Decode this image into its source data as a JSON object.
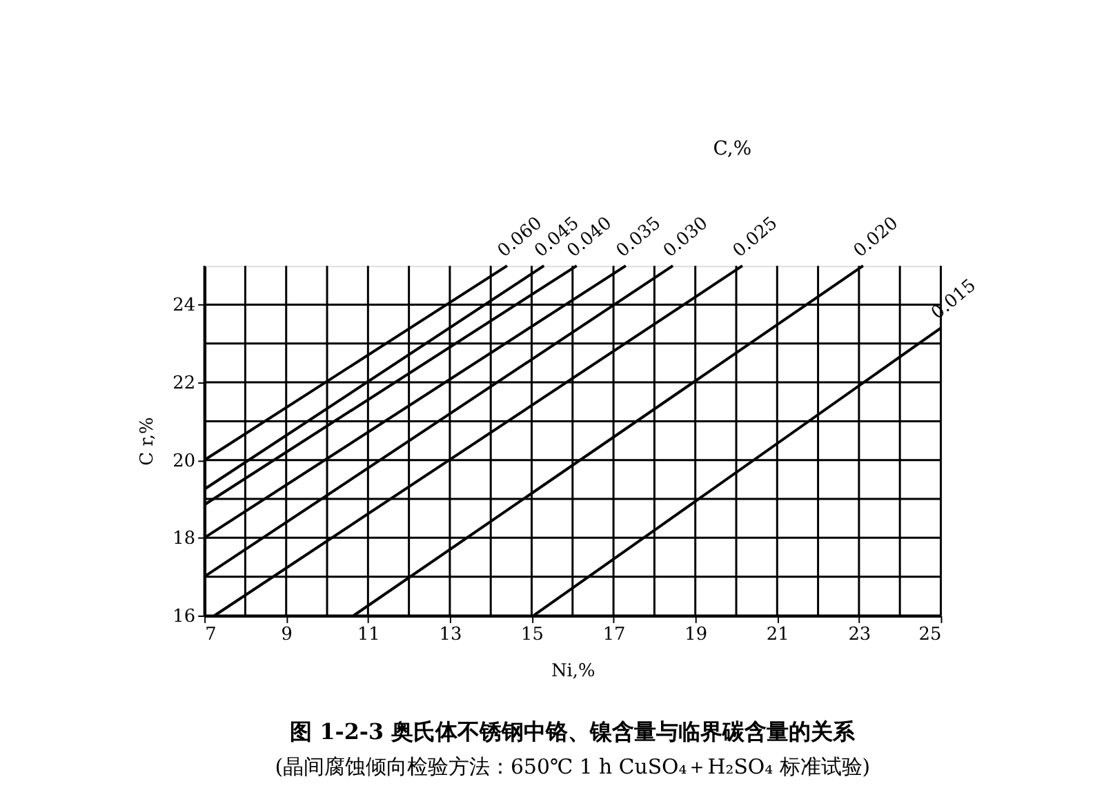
{
  "chart_data": {
    "type": "line",
    "title": "图 1-2-3  奥氏体不锈钢中铬、镍含量与临界碳含量的关系",
    "subtitle": "(晶间腐蚀倾向检验方法：650℃ 1 h CuSO₄＋H₂SO₄ 标准试验)",
    "xlabel": "Ni,%",
    "ylabel": "C r,%",
    "annotations": [
      "C,%"
    ],
    "xlim": [
      7,
      25
    ],
    "ylim": [
      16,
      25
    ],
    "xticks": [
      7,
      {
        "value": 8,
        "label": null
      },
      9,
      {
        "value": 10,
        "label": null
      },
      11,
      {
        "value": 12,
        "label": null
      },
      13,
      {
        "value": 14,
        "label": null
      },
      15,
      {
        "value": 16,
        "label": null
      },
      17,
      {
        "value": 18,
        "label": null
      },
      19,
      {
        "value": 20,
        "label": null
      },
      21,
      {
        "value": 22,
        "label": null
      },
      23,
      {
        "value": 24,
        "label": null
      },
      25
    ],
    "yticks": [
      16,
      {
        "value": 17,
        "label": null
      },
      18,
      {
        "value": 19,
        "label": null
      },
      20,
      {
        "value": 21,
        "label": null
      },
      22,
      {
        "value": 23,
        "label": null
      },
      24
    ],
    "grid": true,
    "legend": false,
    "marker": "none",
    "line_style": "solid",
    "series": [
      {
        "name": "0.060",
        "color": "#000000",
        "x": [
          7,
          14.4
        ],
        "values": [
          20.0,
          25
        ]
      },
      {
        "name": "0.045",
        "color": "#000000",
        "x": [
          7,
          15.3
        ],
        "values": [
          19.25,
          25
        ]
      },
      {
        "name": "0.040",
        "color": "#000000",
        "x": [
          7,
          16.1
        ],
        "values": [
          18.85,
          25
        ]
      },
      {
        "name": "0.035",
        "color": "#000000",
        "x": [
          7,
          17.3
        ],
        "values": [
          18.0,
          25
        ]
      },
      {
        "name": "0.030",
        "color": "#000000",
        "x": [
          7,
          18.45
        ],
        "values": [
          17.0,
          25
        ]
      },
      {
        "name": "0.025",
        "color": "#000000",
        "x": [
          7.25,
          20.15
        ],
        "values": [
          16,
          25
        ]
      },
      {
        "name": "0.020",
        "color": "#000000",
        "x": [
          10.65,
          23.1
        ],
        "values": [
          16,
          25
        ]
      },
      {
        "name": "0.015",
        "color": "#000000",
        "x": [
          15.05,
          25
        ],
        "values": [
          16,
          23.4
        ]
      }
    ]
  }
}
